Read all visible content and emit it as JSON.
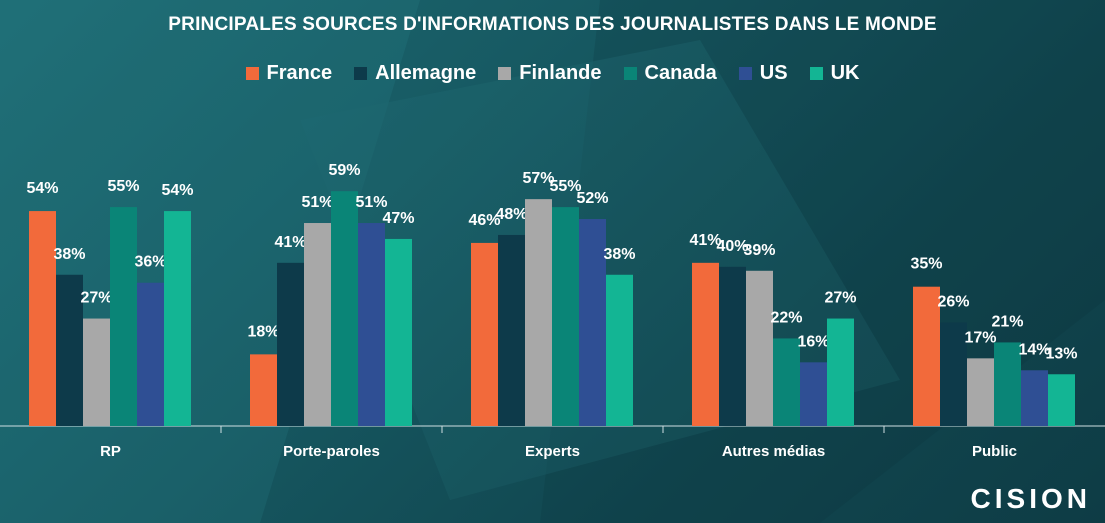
{
  "chart_data": {
    "type": "bar",
    "title": "PRINCIPALES SOURCES D'INFORMATIONS DES JOURNALISTES DANS LE MONDE",
    "categories": [
      "RP",
      "Porte-paroles",
      "Experts",
      "Autres médias",
      "Public"
    ],
    "series": [
      {
        "name": "France",
        "color": "#f26a3b",
        "values": [
          54,
          18,
          46,
          41,
          35
        ]
      },
      {
        "name": "Allemagne",
        "color": "#0d3a4a",
        "values": [
          38,
          41,
          48,
          40,
          26
        ]
      },
      {
        "name": "Finlande",
        "color": "#a8a8a8",
        "values": [
          27,
          51,
          57,
          39,
          17
        ]
      },
      {
        "name": "Canada",
        "color": "#0a8577",
        "values": [
          55,
          59,
          55,
          22,
          21
        ]
      },
      {
        "name": "US",
        "color": "#2f4f94",
        "values": [
          36,
          51,
          52,
          16,
          14
        ]
      },
      {
        "name": "UK",
        "color": "#13b594",
        "values": [
          54,
          47,
          38,
          27,
          13
        ]
      }
    ],
    "data_labels": [
      [
        "54%",
        "38%",
        "27%",
        "55%",
        "36%",
        "54%"
      ],
      [
        "18%",
        "41%",
        "51%",
        "59%",
        "51%",
        "47%"
      ],
      [
        "46%",
        "48%",
        "57%",
        "55%",
        "52%",
        "38%"
      ],
      [
        "41%",
        "40%",
        "39%",
        "22%",
        "16%",
        "27%"
      ],
      [
        "35%",
        "26%",
        "17%",
        "21%",
        "14%",
        "13%"
      ]
    ],
    "ylim": [
      0,
      60
    ],
    "grid": false,
    "legend_position": "top-center"
  },
  "logo": "CISION"
}
